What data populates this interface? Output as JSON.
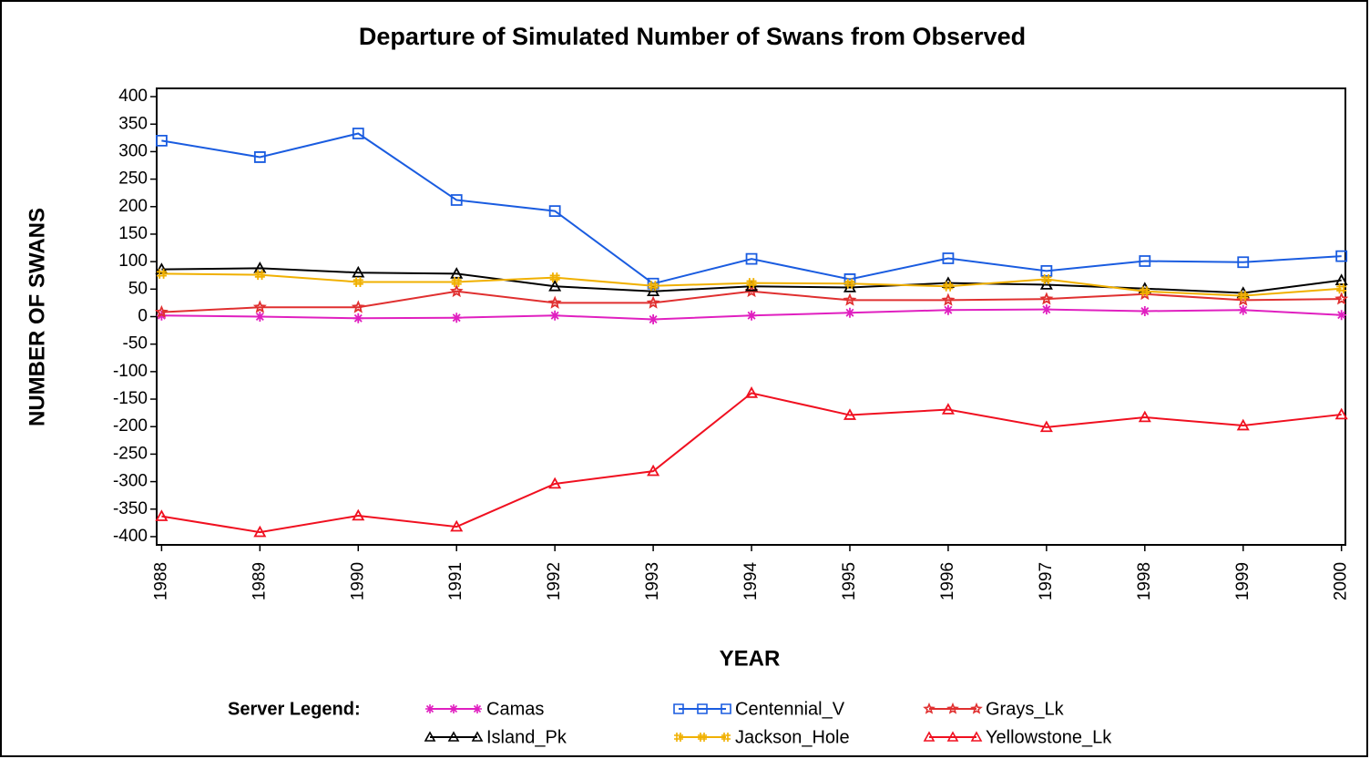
{
  "chart_data": {
    "type": "line",
    "title": "Departure of Simulated Number of Swans from Observed",
    "xlabel": "YEAR",
    "ylabel": "NUMBER OF SWANS",
    "legend_title": "Server Legend:",
    "x": [
      1988,
      1989,
      1990,
      1991,
      1992,
      1993,
      1994,
      1995,
      1996,
      1997,
      1998,
      1999,
      2000
    ],
    "xlim": [
      1987.95,
      2000.04
    ],
    "xticks": [
      1988,
      1989,
      1990,
      1991,
      1992,
      1993,
      1994,
      1995,
      1996,
      1997,
      1998,
      1999,
      2000
    ],
    "ylim": [
      -415,
      415
    ],
    "yticks": [
      -400,
      -350,
      -300,
      -250,
      -200,
      -150,
      -100,
      -50,
      0,
      50,
      100,
      150,
      200,
      250,
      300,
      350,
      400
    ],
    "grid": false,
    "series": [
      {
        "name": "Camas",
        "color": "#e020c0",
        "marker": "asterisk",
        "values": [
          2,
          0,
          -3,
          -2,
          2,
          -5,
          2,
          7,
          12,
          13,
          10,
          12,
          3
        ]
      },
      {
        "name": "Centennial_V",
        "color": "#1a5ce0",
        "marker": "square",
        "values": [
          320,
          290,
          333,
          212,
          192,
          60,
          105,
          68,
          106,
          83,
          101,
          99,
          110
        ]
      },
      {
        "name": "Grays_Lk",
        "color": "#e03030",
        "marker": "star",
        "values": [
          8,
          17,
          17,
          46,
          25,
          25,
          46,
          30,
          30,
          32,
          41,
          30,
          32
        ]
      },
      {
        "name": "Island_Pk",
        "color": "#000000",
        "marker": "triangle",
        "values": [
          86,
          88,
          80,
          78,
          55,
          46,
          55,
          53,
          61,
          58,
          51,
          43,
          66
        ]
      },
      {
        "name": "Jackson_Hole",
        "color": "#f0b000",
        "marker": "hash",
        "values": [
          78,
          76,
          63,
          63,
          71,
          56,
          61,
          60,
          55,
          68,
          46,
          38,
          51
        ]
      },
      {
        "name": "Yellowstone_Lk",
        "color": "#f01020",
        "marker": "triangle",
        "values": [
          -363,
          -392,
          -362,
          -382,
          -304,
          -281,
          -139,
          -179,
          -169,
          -201,
          -183,
          -198,
          -178
        ]
      }
    ]
  }
}
